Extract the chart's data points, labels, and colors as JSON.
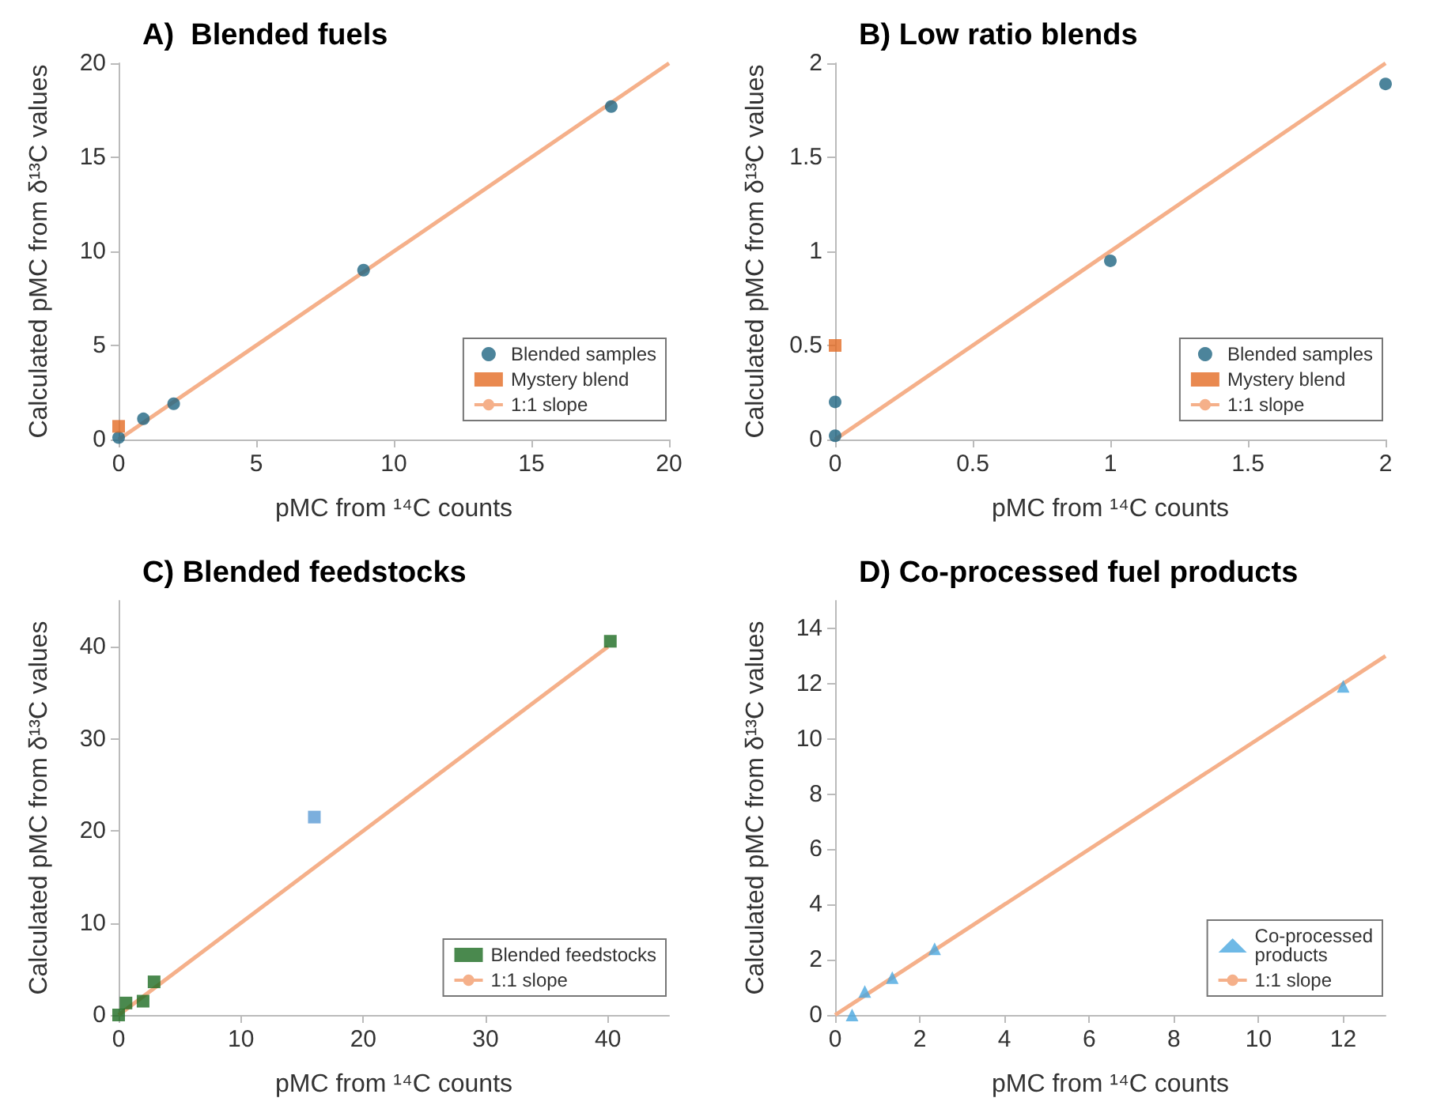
{
  "chart_data": [
    {
      "type": "scatter",
      "title": "A)  Blended fuels",
      "xlabel": "pMC from ¹⁴C counts",
      "ylabel": "Calculated pMC from δ¹³C values",
      "xlim": [
        0,
        20
      ],
      "ylim": [
        0,
        20
      ],
      "xticks": [
        0,
        5,
        10,
        15,
        20
      ],
      "yticks": [
        0,
        5,
        10,
        15,
        20
      ],
      "grid": false,
      "legend": "bottom right",
      "series": [
        {
          "name": "Blended samples",
          "color": "#1f6582",
          "marker": "circle",
          "x": [
            0,
            0.9,
            2,
            8.9,
            17.9
          ],
          "values": [
            0.1,
            1.1,
            1.9,
            9,
            17.7
          ]
        },
        {
          "name": "Mystery blend",
          "color": "#e46c24",
          "marker": "square",
          "x": [
            0
          ],
          "values": [
            0.7
          ]
        },
        {
          "name": "1:1 slope",
          "type": "line",
          "color": "#f5b08a",
          "marker": "none",
          "line_style": "solid",
          "x": [
            0,
            20
          ],
          "values": [
            0,
            20
          ]
        }
      ]
    },
    {
      "type": "scatter",
      "title": "B) Low ratio blends",
      "xlabel": "pMC from ¹⁴C counts",
      "ylabel": "Calculated pMC from δ¹³C values",
      "xlim": [
        0,
        2
      ],
      "ylim": [
        0,
        2
      ],
      "xticks": [
        0,
        0.5,
        1,
        1.5,
        2
      ],
      "yticks": [
        0,
        0.5,
        1,
        1.5,
        2
      ],
      "grid": false,
      "legend": "bottom right",
      "series": [
        {
          "name": "Blended samples",
          "color": "#1f6582",
          "marker": "circle",
          "x": [
            0,
            0,
            1,
            2
          ],
          "values": [
            0.02,
            0.2,
            0.95,
            1.89
          ]
        },
        {
          "name": "Mystery blend",
          "color": "#e46c24",
          "marker": "square",
          "x": [
            0
          ],
          "values": [
            0.5
          ]
        },
        {
          "name": "1:1 slope",
          "type": "line",
          "color": "#f5b08a",
          "marker": "none",
          "line_style": "solid",
          "x": [
            0,
            2
          ],
          "values": [
            0,
            2
          ]
        }
      ]
    },
    {
      "type": "scatter",
      "title": "C) Blended feedstocks",
      "xlabel": "pMC from ¹⁴C counts",
      "ylabel": "Calculated pMC from δ¹³C values",
      "xlim": [
        0,
        45
      ],
      "ylim": [
        0,
        45
      ],
      "xticks": [
        0,
        10,
        20,
        30,
        40
      ],
      "yticks": [
        0,
        10,
        20,
        30,
        40
      ],
      "grid": false,
      "legend": "bottom right",
      "series": [
        {
          "name": "Blended feedstocks",
          "color": "#1d6b22",
          "marker": "square",
          "x": [
            0,
            0.6,
            2,
            2.9,
            40.2
          ],
          "values": [
            0,
            1.3,
            1.5,
            3.6,
            40.6
          ]
        },
        {
          "color": "#5b9bd5",
          "marker": "square",
          "x": [
            16
          ],
          "values": [
            21.5
          ]
        },
        {
          "name": "1:1 slope",
          "type": "line",
          "color": "#f5b08a",
          "marker": "none",
          "line_style": "solid",
          "x": [
            0,
            40
          ],
          "values": [
            0,
            40
          ]
        }
      ]
    },
    {
      "type": "scatter",
      "title": "D) Co-processed fuel products",
      "xlabel": "pMC from ¹⁴C counts",
      "ylabel": "Calculated pMC from δ¹³C values",
      "xlim": [
        0,
        13
      ],
      "ylim": [
        0,
        15
      ],
      "xticks": [
        0,
        2,
        4,
        6,
        8,
        10,
        12
      ],
      "yticks": [
        0,
        2,
        4,
        6,
        8,
        10,
        12,
        14
      ],
      "grid": false,
      "legend": "bottom right",
      "series": [
        {
          "name": "Co-processed\nproducts",
          "color": "#4aa8e0",
          "marker": "triangle",
          "x": [
            0.4,
            0.7,
            1.35,
            2.35,
            12
          ],
          "values": [
            0,
            0.85,
            1.35,
            2.4,
            11.9
          ]
        },
        {
          "name": "1:1 slope",
          "type": "line",
          "color": "#f5b08a",
          "marker": "none",
          "line_style": "solid",
          "x": [
            0,
            13
          ],
          "values": [
            0,
            13
          ]
        }
      ]
    }
  ]
}
